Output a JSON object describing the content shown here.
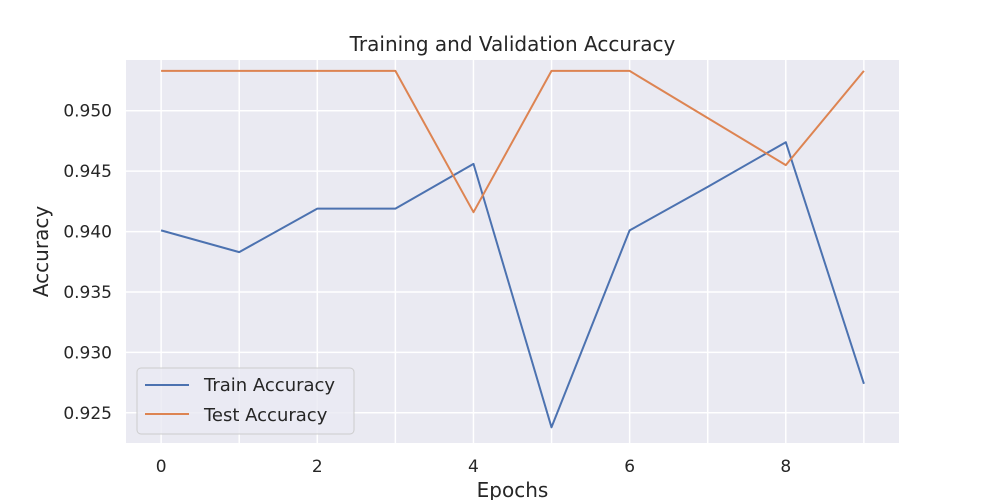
{
  "chart_data": {
    "type": "line",
    "title": "Training and Validation Accuracy",
    "xlabel": "Epochs",
    "ylabel": "Accuracy",
    "x": [
      0,
      1,
      2,
      3,
      4,
      5,
      6,
      7,
      8,
      9
    ],
    "xlim": [
      -0.45,
      9.45
    ],
    "ylim": [
      0.9225,
      0.9542
    ],
    "xticks": [
      0,
      2,
      4,
      6,
      8
    ],
    "yticks": [
      0.925,
      0.93,
      0.935,
      0.94,
      0.945,
      0.95
    ],
    "xtick_labels": [
      "0",
      "2",
      "4",
      "6",
      "8"
    ],
    "ytick_labels": [
      "0.925",
      "0.930",
      "0.935",
      "0.940",
      "0.945",
      "0.950"
    ],
    "grid": true,
    "background": "#eaeaf2",
    "legend_position": "lower-left",
    "series": [
      {
        "name": "Train Accuracy",
        "color": "#4c72b0",
        "values": [
          0.9401,
          0.9383,
          0.9419,
          0.9419,
          0.9456,
          0.9238,
          0.9401,
          0.9437,
          0.9474,
          0.9274
        ]
      },
      {
        "name": "Test Accuracy",
        "color": "#dd8452",
        "values": [
          0.9533,
          0.9533,
          0.9533,
          0.9533,
          0.9416,
          0.9533,
          0.9533,
          0.9494,
          0.9455,
          0.9533
        ]
      }
    ]
  }
}
